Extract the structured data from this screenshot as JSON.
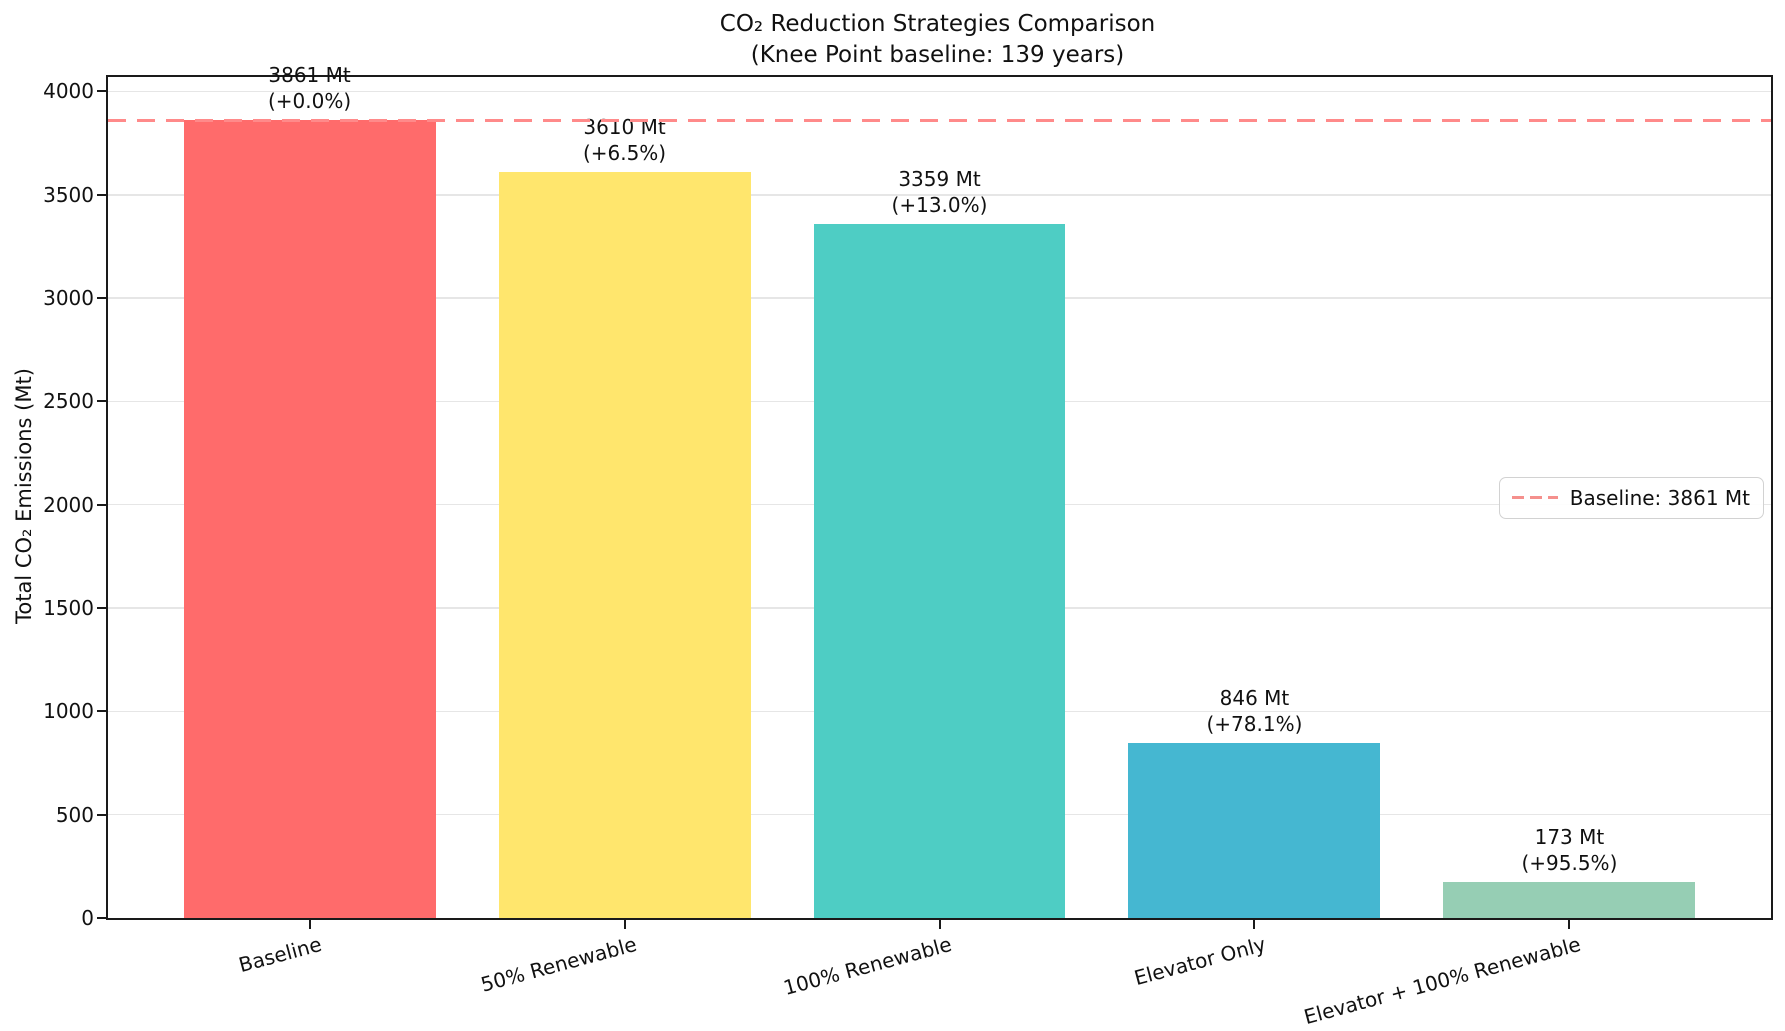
{
  "chart_data": {
    "type": "bar",
    "title": "CO₂ Reduction Strategies Comparison",
    "subtitle": "(Knee Point baseline: 139 years)",
    "ylabel": "Total CO₂ Emissions (Mt)",
    "categories": [
      "Baseline",
      "50% Renewable",
      "100% Renewable",
      "Elevator Only",
      "Elevator + 100% Renewable"
    ],
    "values": [
      3861,
      3610,
      3359,
      846,
      173
    ],
    "bar_colors": [
      "#FF6B6B",
      "#FFE66D",
      "#4ECDC4",
      "#45B7D1",
      "#96CEB4"
    ],
    "annotations": [
      {
        "value_label": "3861 Mt",
        "pct_label": "(+0.0%)"
      },
      {
        "value_label": "3610 Mt",
        "pct_label": "(+6.5%)"
      },
      {
        "value_label": "3359 Mt",
        "pct_label": "(+13.0%)"
      },
      {
        "value_label": "846 Mt",
        "pct_label": "(+78.1%)"
      },
      {
        "value_label": "173 Mt",
        "pct_label": "(+95.5%)"
      }
    ],
    "yticks": [
      0,
      500,
      1000,
      1500,
      2000,
      2500,
      3000,
      3500,
      4000
    ],
    "ylim": [
      0,
      4070
    ],
    "grid": true,
    "baseline": {
      "value": 3861,
      "label": "Baseline: 3861 Mt",
      "color": "#ff8a8a",
      "style": "dashed"
    },
    "legend_position": "center right",
    "bar_width_fraction": 0.8,
    "x_label_rotation_deg": 15
  }
}
